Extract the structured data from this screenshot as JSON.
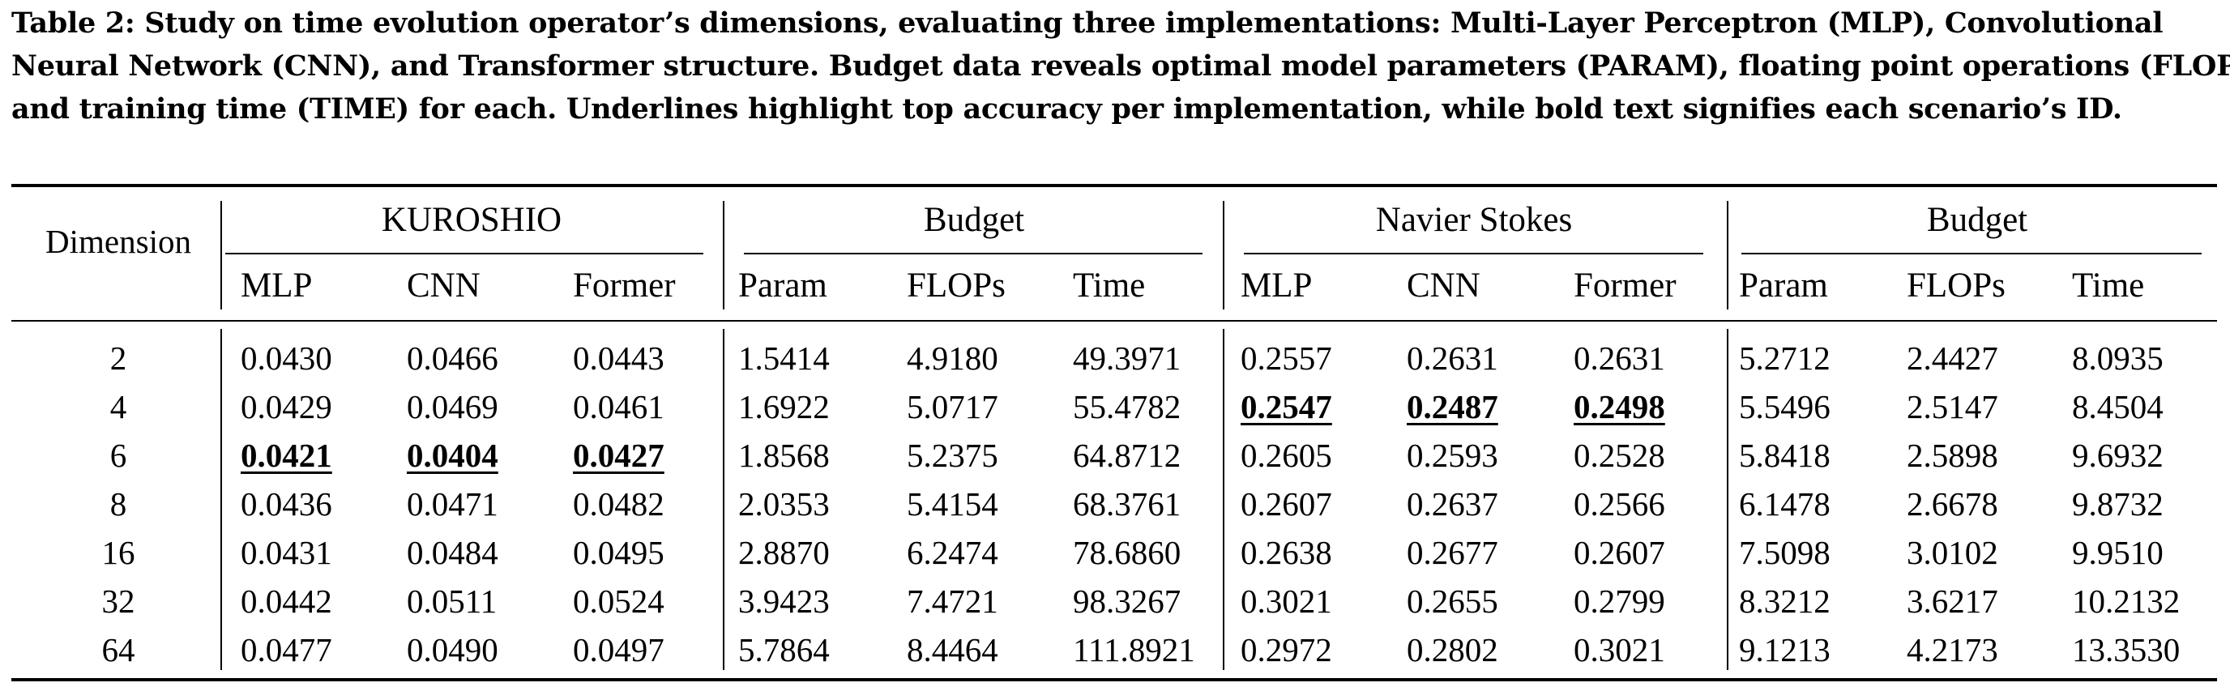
{
  "caption": {
    "lines": [
      "Table 2: Study on time evolution operator’s dimensions, evaluating three implementations: Multi-Layer Perceptron (MLP), Convolutional",
      "Neural Network (CNN), and Transformer structure. Budget data reveals optimal model parameters (PARAM), floating point operations (FLOPs),",
      "and training time (TIME) for each. Underlines highlight top accuracy per implementation, while bold text signifies each scenario’s ID."
    ]
  },
  "header": {
    "row_label": "Dimension",
    "groups": [
      "KUROSHIO",
      "Budget",
      "Navier Stokes",
      "Budget"
    ],
    "columns": [
      "MLP",
      "CNN",
      "Former",
      "Param",
      "FLOPs",
      "Time",
      "MLP",
      "CNN",
      "Former",
      "Param",
      "FLOPs",
      "Time"
    ]
  },
  "rows": [
    {
      "dim": "2",
      "values": [
        "0.0430",
        "0.0466",
        "0.0443",
        "1.5414",
        "4.9180",
        "49.3971",
        "0.2557",
        "0.2631",
        "0.2631",
        "5.2712",
        "2.4427",
        "8.0935"
      ]
    },
    {
      "dim": "4",
      "values": [
        "0.0429",
        "0.0469",
        "0.0461",
        "1.6922",
        "5.0717",
        "55.4782",
        "0.2547",
        "0.2487",
        "0.2498",
        "5.5496",
        "2.5147",
        "8.4504"
      ]
    },
    {
      "dim": "6",
      "values": [
        "0.0421",
        "0.0404",
        "0.0427",
        "1.8568",
        "5.2375",
        "64.8712",
        "0.2605",
        "0.2593",
        "0.2528",
        "5.8418",
        "2.5898",
        "9.6932"
      ]
    },
    {
      "dim": "8",
      "values": [
        "0.0436",
        "0.0471",
        "0.0482",
        "2.0353",
        "5.4154",
        "68.3761",
        "0.2607",
        "0.2637",
        "0.2566",
        "6.1478",
        "2.6678",
        "9.8732"
      ]
    },
    {
      "dim": "16",
      "values": [
        "0.0431",
        "0.0484",
        "0.0495",
        "2.8870",
        "6.2474",
        "78.6860",
        "0.2638",
        "0.2677",
        "0.2607",
        "7.5098",
        "3.0102",
        "9.9510"
      ]
    },
    {
      "dim": "32",
      "values": [
        "0.0442",
        "0.0511",
        "0.0524",
        "3.9423",
        "7.4721",
        "98.3267",
        "0.3021",
        "0.2655",
        "0.2799",
        "8.3212",
        "3.6217",
        "10.2132"
      ]
    },
    {
      "dim": "64",
      "values": [
        "0.0477",
        "0.0490",
        "0.0497",
        "5.7864",
        "8.4464",
        "111.8921",
        "0.2972",
        "0.2802",
        "0.3021",
        "9.1213",
        "4.2173",
        "13.3530"
      ]
    }
  ],
  "highlighted": [
    [
      2,
      0
    ],
    [
      2,
      1
    ],
    [
      2,
      2
    ],
    [
      1,
      6
    ],
    [
      1,
      7
    ],
    [
      1,
      8
    ]
  ]
}
